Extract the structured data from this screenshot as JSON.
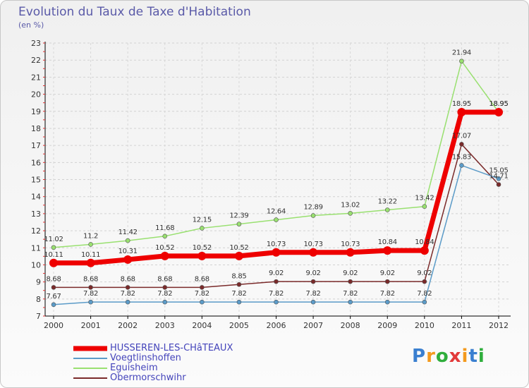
{
  "chart_data": {
    "type": "line",
    "title": "Evolution du Taux de Taxe d'Habitation",
    "ylabel": "(en %)",
    "xlabel": "",
    "ylim": [
      7,
      23
    ],
    "yticks": [
      "7",
      "8",
      "9",
      "10",
      "11",
      "12",
      "13",
      "14",
      "15",
      "16",
      "17",
      "18",
      "19",
      "20",
      "21",
      "22",
      "23"
    ],
    "categories": [
      "2000",
      "2001",
      "2002",
      "2003",
      "2004",
      "2005",
      "2006",
      "2007",
      "2008",
      "2009",
      "2010",
      "2011",
      "2012"
    ],
    "series": [
      {
        "name": "HUSSEREN-LES-CHâTEAUX",
        "color": "#ee0000",
        "values": [
          10.11,
          10.11,
          10.31,
          10.52,
          10.52,
          10.52,
          10.73,
          10.73,
          10.73,
          10.84,
          10.84,
          18.95,
          18.95
        ],
        "labels": [
          "10.11",
          "10.11",
          "10.31",
          "10.52",
          "10.52",
          "10.52",
          "10.73",
          "10.73",
          "10.73",
          "10.84",
          "10.84",
          "18.95",
          "18.95"
        ]
      },
      {
        "name": "Voegtlinshoffen",
        "color": "#5b9bc8",
        "values": [
          7.67,
          7.82,
          7.82,
          7.82,
          7.82,
          7.82,
          7.82,
          7.82,
          7.82,
          7.82,
          7.82,
          15.83,
          15.05
        ],
        "labels": [
          "7.67",
          "7.82",
          "7.82",
          "7.82",
          "7.82",
          "7.82",
          "7.82",
          "7.82",
          "7.82",
          "7.82",
          "7.82",
          "15.83",
          "15.05"
        ]
      },
      {
        "name": "Eguisheim",
        "color": "#99e070",
        "values": [
          11.02,
          11.2,
          11.42,
          11.68,
          12.15,
          12.39,
          12.64,
          12.89,
          13.02,
          13.22,
          13.42,
          21.94,
          18.95
        ],
        "labels": [
          "11.02",
          "11.2",
          "11.42",
          "11.68",
          "12.15",
          "12.39",
          "12.64",
          "12.89",
          "13.02",
          "13.22",
          "13.42",
          "21.94",
          "18.95"
        ]
      },
      {
        "name": "Obermorschwihr",
        "color": "#7a2a2a",
        "values": [
          8.68,
          8.68,
          8.68,
          8.68,
          8.68,
          8.85,
          9.02,
          9.02,
          9.02,
          9.02,
          9.02,
          17.07,
          14.71
        ],
        "labels": [
          "8.68",
          "8.68",
          "8.68",
          "8.68",
          "8.68",
          "8.85",
          "9.02",
          "9.02",
          "9.02",
          "9.02",
          "9.02",
          "17.07",
          "14.71"
        ]
      }
    ]
  },
  "brand": {
    "letters": [
      "P",
      "r",
      "o",
      "x",
      "i",
      "t",
      "i"
    ],
    "colors": [
      "#3a7fd0",
      "#f39a1e",
      "#2fae3c",
      "#e23a3a",
      "#f39a1e",
      "#3a7fd0",
      "#2fae3c"
    ]
  }
}
